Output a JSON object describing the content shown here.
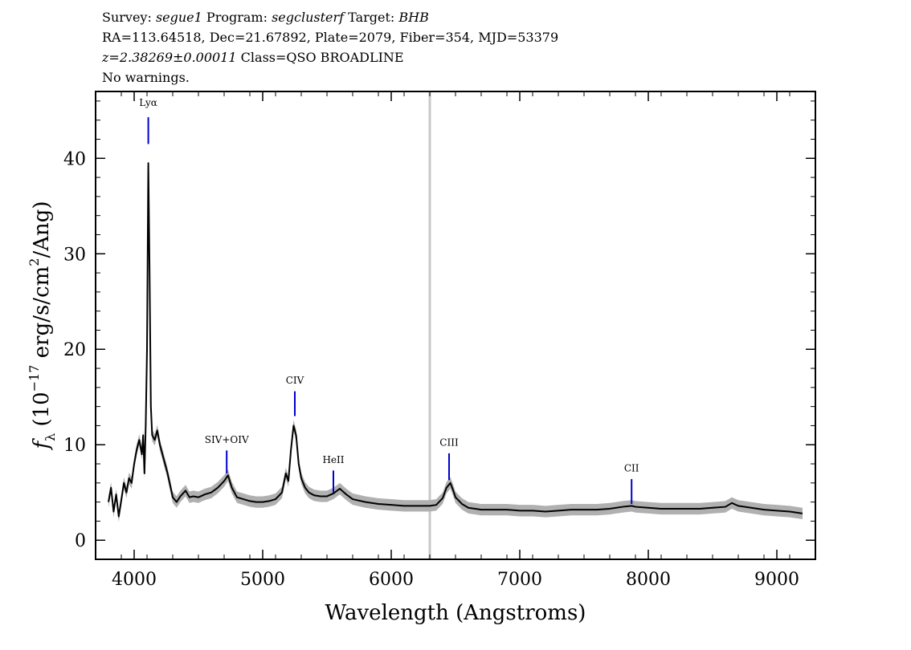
{
  "header": {
    "survey_label": "Survey:",
    "survey": "segue1",
    "program_label": "Program:",
    "program": "segclusterf",
    "target_label": "Target:",
    "target": "BHB",
    "line2": "RA=113.64518, Dec=21.67892, Plate=2079, Fiber=354, MJD=53379",
    "redshift": "z=2.38269±0.00011",
    "class": "Class=QSO BROADLINE",
    "warnings": "No warnings."
  },
  "chart_data": {
    "type": "line",
    "xlabel": "Wavelength (Angstroms)",
    "ylabel_prefix": "f",
    "ylabel_sub": "λ",
    "ylabel_main": "(10",
    "ylabel_exp": "−17",
    "ylabel_unit": "erg/s/cm",
    "ylabel_exp2": "2",
    "ylabel_end": "/Ang)",
    "xlim": [
      3700,
      9300
    ],
    "ylim": [
      -2,
      47
    ],
    "xticks": [
      4000,
      5000,
      6000,
      7000,
      8000,
      9000
    ],
    "yticks": [
      0,
      10,
      20,
      30,
      40
    ],
    "vertical_marker_x": 6300,
    "colors": {
      "spectrum": "#000000",
      "error_band": "#b0b0b0",
      "line_marker": "#0000cc",
      "vertical_marker": "#c8c8c8"
    },
    "series": [
      {
        "x": [
          3800,
          3820,
          3840,
          3860,
          3880,
          3900,
          3920,
          3940,
          3960,
          3980,
          4000,
          4020,
          4040,
          4060,
          4070,
          4080,
          4090,
          4100,
          4110,
          4120,
          4130,
          4140,
          4160,
          4180,
          4200,
          4230,
          4260,
          4300,
          4330,
          4360,
          4400,
          4430,
          4460,
          4500,
          4550,
          4600,
          4650,
          4700,
          4730,
          4760,
          4800,
          4850,
          4900,
          4950,
          5000,
          5050,
          5100,
          5150,
          5180,
          5200,
          5220,
          5240,
          5260,
          5280,
          5300,
          5330,
          5360,
          5400,
          5450,
          5500,
          5550,
          5580,
          5600,
          5650,
          5700,
          5800,
          5900,
          6000,
          6100,
          6200,
          6300,
          6350,
          6400,
          6430,
          6460,
          6480,
          6500,
          6550,
          6600,
          6700,
          6800,
          6900,
          7000,
          7100,
          7200,
          7300,
          7400,
          7500,
          7600,
          7700,
          7800,
          7870,
          7900,
          8000,
          8100,
          8200,
          8300,
          8400,
          8500,
          8600,
          8650,
          8700,
          8800,
          8900,
          9000,
          9100,
          9200
        ],
        "y": [
          4.0,
          5.5,
          3.0,
          4.8,
          2.5,
          4.2,
          6.0,
          5.0,
          6.5,
          6.0,
          8.0,
          9.5,
          10.5,
          9.0,
          11.0,
          7.0,
          12.0,
          20.0,
          39.5,
          28.0,
          14.0,
          11.0,
          10.5,
          11.5,
          10.0,
          8.5,
          7.0,
          4.5,
          4.0,
          4.6,
          5.2,
          4.5,
          4.6,
          4.5,
          4.8,
          5.0,
          5.5,
          6.2,
          6.8,
          5.5,
          4.5,
          4.3,
          4.1,
          4.0,
          4.0,
          4.1,
          4.3,
          5.0,
          7.0,
          6.2,
          9.5,
          12.0,
          11.0,
          8.0,
          6.5,
          5.5,
          5.0,
          4.7,
          4.6,
          4.6,
          4.9,
          5.2,
          5.4,
          4.8,
          4.3,
          4.0,
          3.8,
          3.7,
          3.6,
          3.6,
          3.6,
          3.7,
          4.4,
          5.5,
          6.0,
          5.3,
          4.5,
          3.8,
          3.4,
          3.2,
          3.2,
          3.2,
          3.1,
          3.1,
          3.0,
          3.1,
          3.2,
          3.2,
          3.2,
          3.3,
          3.5,
          3.6,
          3.5,
          3.4,
          3.3,
          3.3,
          3.3,
          3.3,
          3.4,
          3.5,
          3.9,
          3.6,
          3.4,
          3.2,
          3.1,
          3.0,
          2.8
        ]
      }
    ],
    "line_labels": [
      {
        "label": "Lyα",
        "x": 4110,
        "y_top": 44.3,
        "y_bottom": 41.5,
        "label_y": 45.5
      },
      {
        "label": "SIV+OIV",
        "x": 4720,
        "y_top": 9.4,
        "y_bottom": 7.0,
        "label_y": 10.2
      },
      {
        "label": "CIV",
        "x": 5250,
        "y_top": 15.6,
        "y_bottom": 13.0,
        "label_y": 16.4
      },
      {
        "label": "HeII",
        "x": 5550,
        "y_top": 7.3,
        "y_bottom": 5.0,
        "label_y": 8.1
      },
      {
        "label": "CIII",
        "x": 6450,
        "y_top": 9.1,
        "y_bottom": 6.3,
        "label_y": 9.9
      },
      {
        "label": "CII",
        "x": 7870,
        "y_top": 6.4,
        "y_bottom": 3.8,
        "label_y": 7.2
      }
    ]
  }
}
